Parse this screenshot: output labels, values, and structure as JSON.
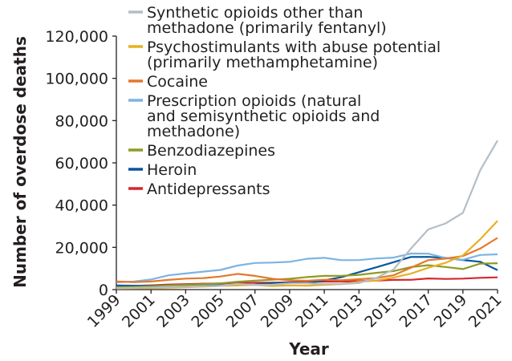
{
  "chart_data": {
    "type": "line",
    "title": "",
    "xlabel": "Year",
    "ylabel": "Number of overdose deaths",
    "ylim": [
      0,
      120000
    ],
    "yticks": [
      "0",
      "20,000",
      "40,000",
      "60,000",
      "80,000",
      "100,000",
      "120,000"
    ],
    "xticks": [
      "1999",
      "2001",
      "2003",
      "2005",
      "2007",
      "2009",
      "2011",
      "2013",
      "2015",
      "2017",
      "2019",
      "2021"
    ],
    "x": [
      1999,
      2000,
      2001,
      2002,
      2003,
      2004,
      2005,
      2006,
      2007,
      2008,
      2009,
      2010,
      2011,
      2012,
      2013,
      2014,
      2015,
      2016,
      2017,
      2018,
      2019,
      2020,
      2021
    ],
    "grid": false,
    "legend_position": "upper left (inside plot)",
    "series": [
      {
        "name": "Synthetic opioids other than methadone (primarily fentanyl)",
        "legend_lines": [
          "Synthetic opioids other than",
          "methadone (primarily fentanyl)"
        ],
        "color": "#b4bec6",
        "values": [
          730,
          782,
          957,
          1295,
          1400,
          1664,
          1742,
          2707,
          2213,
          2306,
          2946,
          3007,
          2666,
          2628,
          3105,
          5544,
          9580,
          19413,
          28466,
          31335,
          36359,
          56516,
          70601
        ]
      },
      {
        "name": "Psychostimulants with abuse potential (primarily methamphetamine)",
        "legend_lines": [
          "Psychostimulants with abuse potential",
          "(primarily methamphetamine)"
        ],
        "color": "#e7b025",
        "values": [
          547,
          578,
          708,
          890,
          1128,
          1392,
          1742,
          1965,
          2188,
          1727,
          1956,
          1854,
          2266,
          2635,
          3627,
          4298,
          5716,
          7542,
          10333,
          12676,
          16167,
          23837,
          32537
        ]
      },
      {
        "name": "Cocaine",
        "legend_lines": [
          "Cocaine"
        ],
        "color": "#e4782b",
        "values": [
          3822,
          3544,
          3833,
          4599,
          5199,
          5443,
          6208,
          7448,
          6512,
          5129,
          4350,
          4183,
          4681,
          4404,
          4944,
          5415,
          6784,
          10375,
          13942,
          14666,
          15883,
          19447,
          24486
        ]
      },
      {
        "name": "Prescription opioids (natural and semisynthetic opioids and methadone)",
        "legend_lines": [
          "Prescription opioids (natural",
          "and semisynthetic opioids and",
          "methadone)"
        ],
        "color": "#7db4e3",
        "values": [
          3442,
          3785,
          4770,
          6743,
          7640,
          8498,
          9312,
          11401,
          12600,
          12787,
          13153,
          14566,
          15036,
          13950,
          13974,
          14721,
          15134,
          17087,
          17029,
          14975,
          14139,
          16416,
          16706
        ]
      },
      {
        "name": "Benzodiazepines",
        "legend_lines": [
          "Benzodiazepines"
        ],
        "color": "#8f9b23",
        "values": [
          1135,
          1298,
          1594,
          2003,
          2248,
          2586,
          2973,
          3708,
          4242,
          4684,
          5144,
          5934,
          6485,
          6524,
          6973,
          7945,
          8791,
          10684,
          11537,
          10724,
          9711,
          12290,
          12499
        ]
      },
      {
        "name": "Heroin",
        "legend_lines": [
          "Heroin"
        ],
        "color": "#0a569c",
        "values": [
          1960,
          1842,
          1779,
          2089,
          2080,
          1878,
          2009,
          2088,
          2399,
          3041,
          3278,
          3036,
          4397,
          5925,
          8257,
          10574,
          12989,
          15469,
          15482,
          14996,
          14019,
          13165,
          9173
        ]
      },
      {
        "name": "Antidepressants",
        "legend_lines": [
          "Antidepressants"
        ],
        "color": "#d8262e",
        "values": [
          1749,
          1800,
          2000,
          2400,
          2600,
          2800,
          2900,
          3100,
          3300,
          3300,
          3400,
          3650,
          3850,
          3800,
          4000,
          4250,
          4600,
          4650,
          5269,
          5064,
          5216,
          5597,
          5800
        ]
      }
    ]
  }
}
